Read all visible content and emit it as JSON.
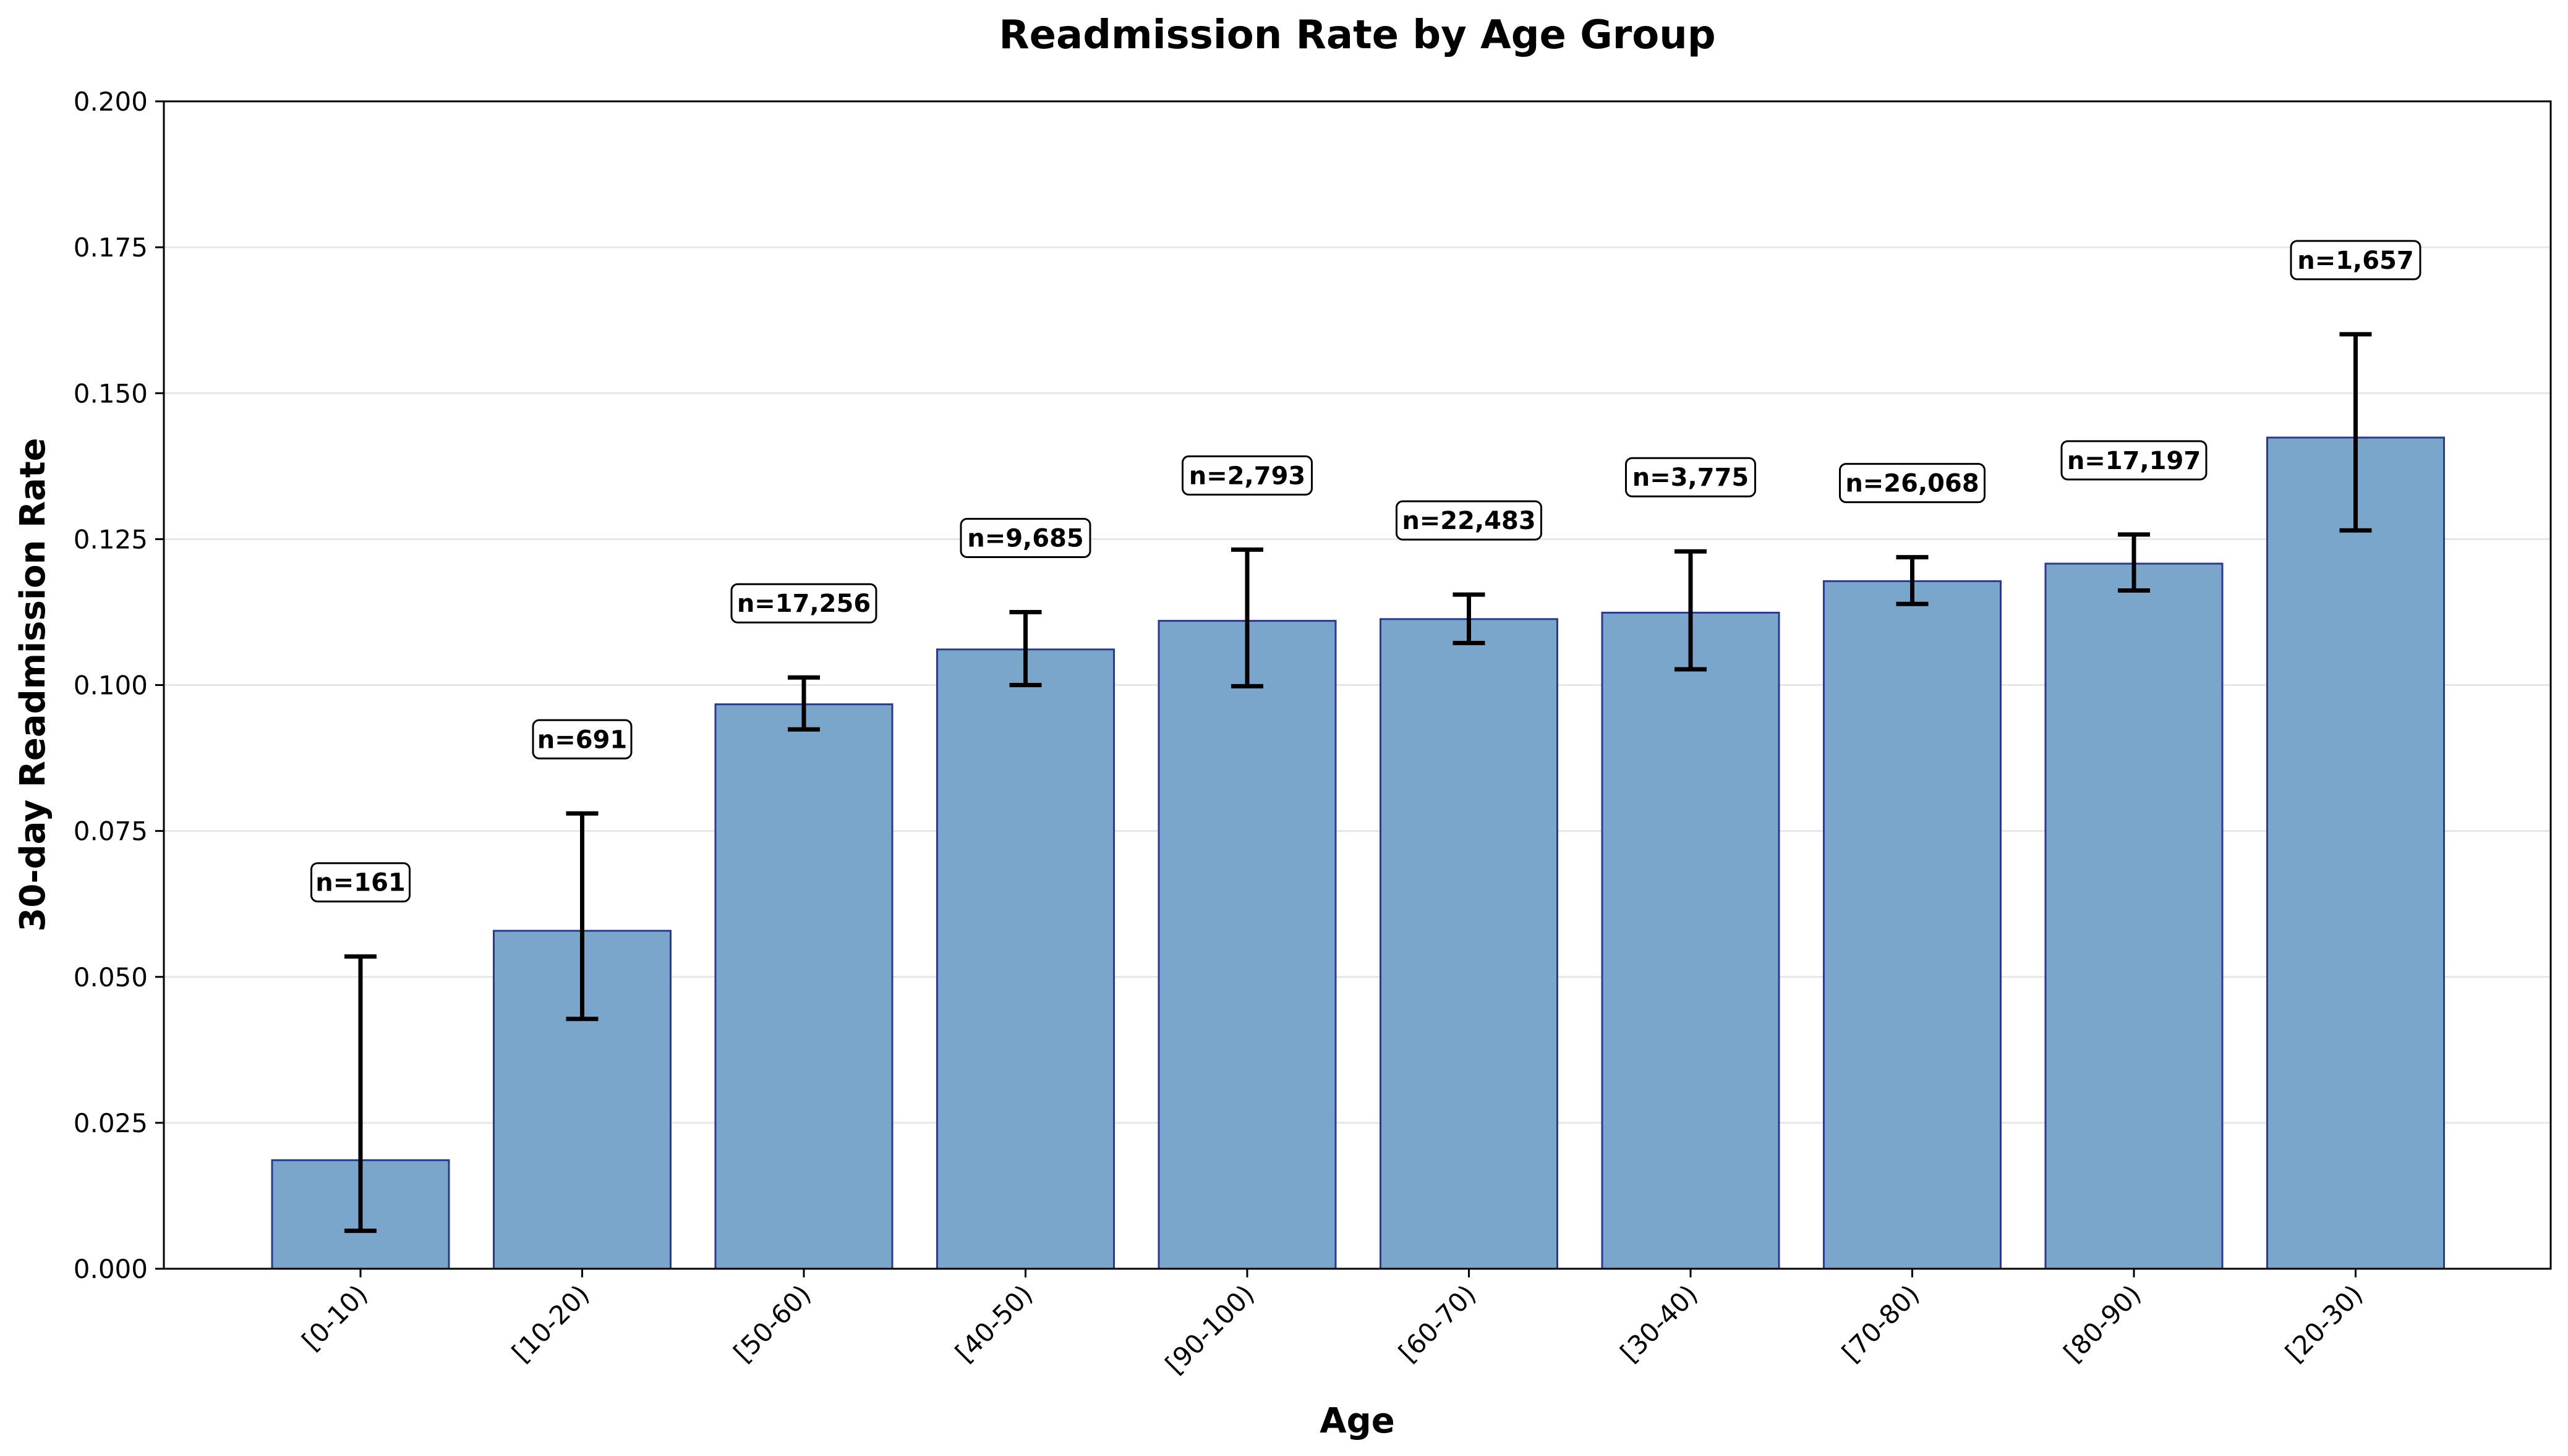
{
  "chart_data": {
    "type": "bar",
    "title": "Readmission Rate by Age Group",
    "xlabel": "Age",
    "ylabel": "30-day Readmission Rate",
    "ylim": [
      0,
      0.2
    ],
    "yticks": [
      "0.000",
      "0.025",
      "0.050",
      "0.075",
      "0.100",
      "0.125",
      "0.150",
      "0.175",
      "0.200"
    ],
    "grid": "y",
    "categories": [
      "[0-10)",
      "[10-20)",
      "[50-60)",
      "[40-50)",
      "[90-100)",
      "[60-70)",
      "[30-40)",
      "[70-80)",
      "[80-90)",
      "[20-30)"
    ],
    "values": [
      0.0186,
      0.0579,
      0.0967,
      0.1061,
      0.111,
      0.1113,
      0.1124,
      0.1178,
      0.1208,
      0.1424
    ],
    "error_low": [
      0.0065,
      0.0428,
      0.0924,
      0.1,
      0.0998,
      0.1072,
      0.1027,
      0.1139,
      0.1162,
      0.1265
    ],
    "error_high": [
      0.0535,
      0.078,
      0.1013,
      0.1125,
      0.1232,
      0.1155,
      0.1229,
      0.1219,
      0.1258,
      0.1601
    ],
    "annotations": [
      "n=161",
      "n=691",
      "n=17,256",
      "n=9,685",
      "n=2,793",
      "n=22,483",
      "n=3,775",
      "n=26,068",
      "n=17,197",
      "n=1,657"
    ],
    "colors": {
      "bar_fill": "#7ba6cb",
      "bar_edge": "#2b3990",
      "error_bar": "#000000",
      "grid": "#e6e6e6"
    }
  }
}
